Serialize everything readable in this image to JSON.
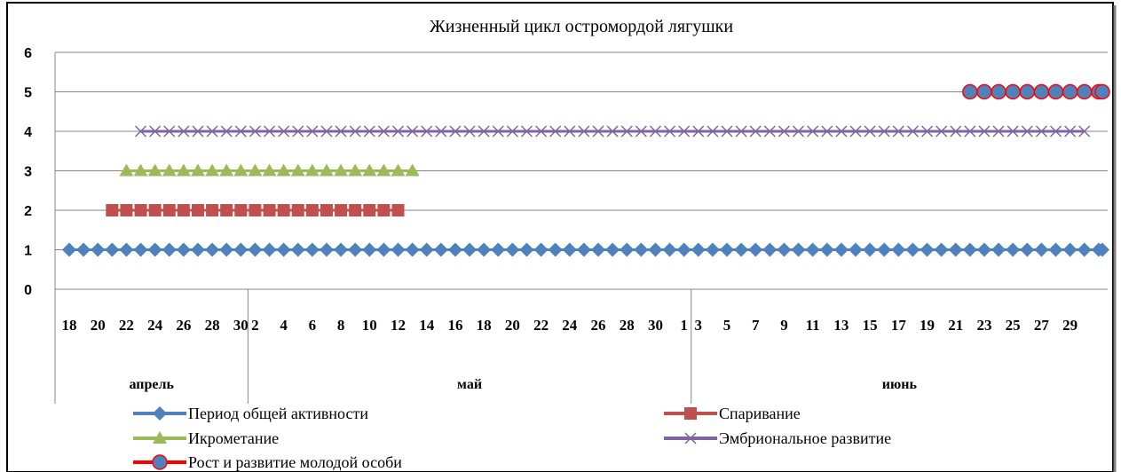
{
  "chart_data": {
    "type": "line",
    "title": "Жизненный цикл остромордой лягушки",
    "xlabel": "",
    "ylabel": "",
    "ylim": [
      0,
      6
    ],
    "yticks": [
      "0",
      "1",
      "2",
      "3",
      "4",
      "5",
      "6"
    ],
    "grid": true,
    "legend_position": "bottom",
    "x_tick_labels": [
      "18",
      "20",
      "22",
      "24",
      "26",
      "28",
      "30",
      "2",
      "4",
      "6",
      "8",
      "10",
      "12",
      "14",
      "16",
      "18",
      "20",
      "22",
      "24",
      "26",
      "28",
      "30",
      "1",
      "3",
      "5",
      "7",
      "9",
      "11",
      "13",
      "15",
      "17",
      "19",
      "21",
      "23",
      "25",
      "27",
      "29"
    ],
    "months": [
      {
        "name": "апрель",
        "start": "04-18",
        "end": "04-30"
      },
      {
        "name": "май",
        "start": "05-01",
        "end": "05-31"
      },
      {
        "name": "июнь",
        "start": "06-01",
        "end": "06-30"
      }
    ],
    "series": [
      {
        "name": "Период общей активности",
        "y": 1,
        "start": "04-18",
        "end": "06-30",
        "color": "#4f81bd",
        "marker": "diamond"
      },
      {
        "name": "Спаривание",
        "y": 2,
        "start": "04-21",
        "end": "05-11",
        "color": "#c0504d",
        "marker": "square"
      },
      {
        "name": "Икрометание",
        "y": 3,
        "start": "04-22",
        "end": "05-12",
        "color": "#9bbb59",
        "marker": "triangle"
      },
      {
        "name": "Эмбриональное развитие",
        "y": 4,
        "start": "04-23",
        "end": "06-28",
        "color": "#8064a2",
        "marker": "x"
      },
      {
        "name": "Рост и развитие молодой особи",
        "y": 5,
        "start": "06-20",
        "end": "06-30",
        "color": "#ff0000",
        "fill": "#4f81bd",
        "marker": "circle"
      }
    ]
  }
}
